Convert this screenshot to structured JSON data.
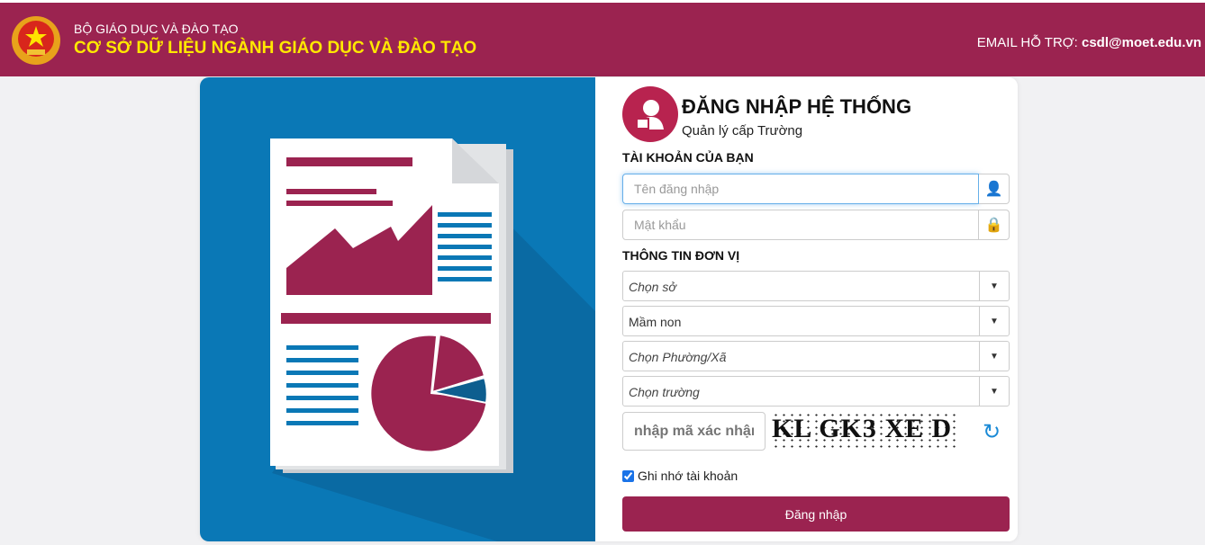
{
  "header": {
    "ministry": "BỘ GIÁO DỤC VÀ ĐÀO TẠO",
    "system": "CƠ SỞ DỮ LIỆU NGÀNH GIÁO DỤC VÀ ĐÀO TẠO",
    "email_label": "EMAIL HỖ TRỢ:",
    "email": "csdl@moet.edu.vn"
  },
  "login": {
    "title": "ĐĂNG NHẬP HỆ THỐNG",
    "subtitle": "Quản lý cấp Trường",
    "account_section": "TÀI KHOẢN CỦA BẠN",
    "username_placeholder": "Tên đăng nhập",
    "password_placeholder": "Mật khẩu",
    "unit_section": "THÔNG TIN ĐƠN VỊ",
    "selects": [
      "Chọn sở",
      "Mầm non",
      "Chọn Phường/Xã",
      "Chọn trường"
    ],
    "captcha_placeholder": "nhập mã xác nhận",
    "captcha_text": "KL GK3 XE D",
    "remember_label": "Ghi nhớ tài khoản",
    "remember_checked": true,
    "submit": "Đăng nhập"
  },
  "colors": {
    "brand": "#9b2350",
    "panel": "#0a78b6",
    "title_yellow": "#ffe800"
  }
}
